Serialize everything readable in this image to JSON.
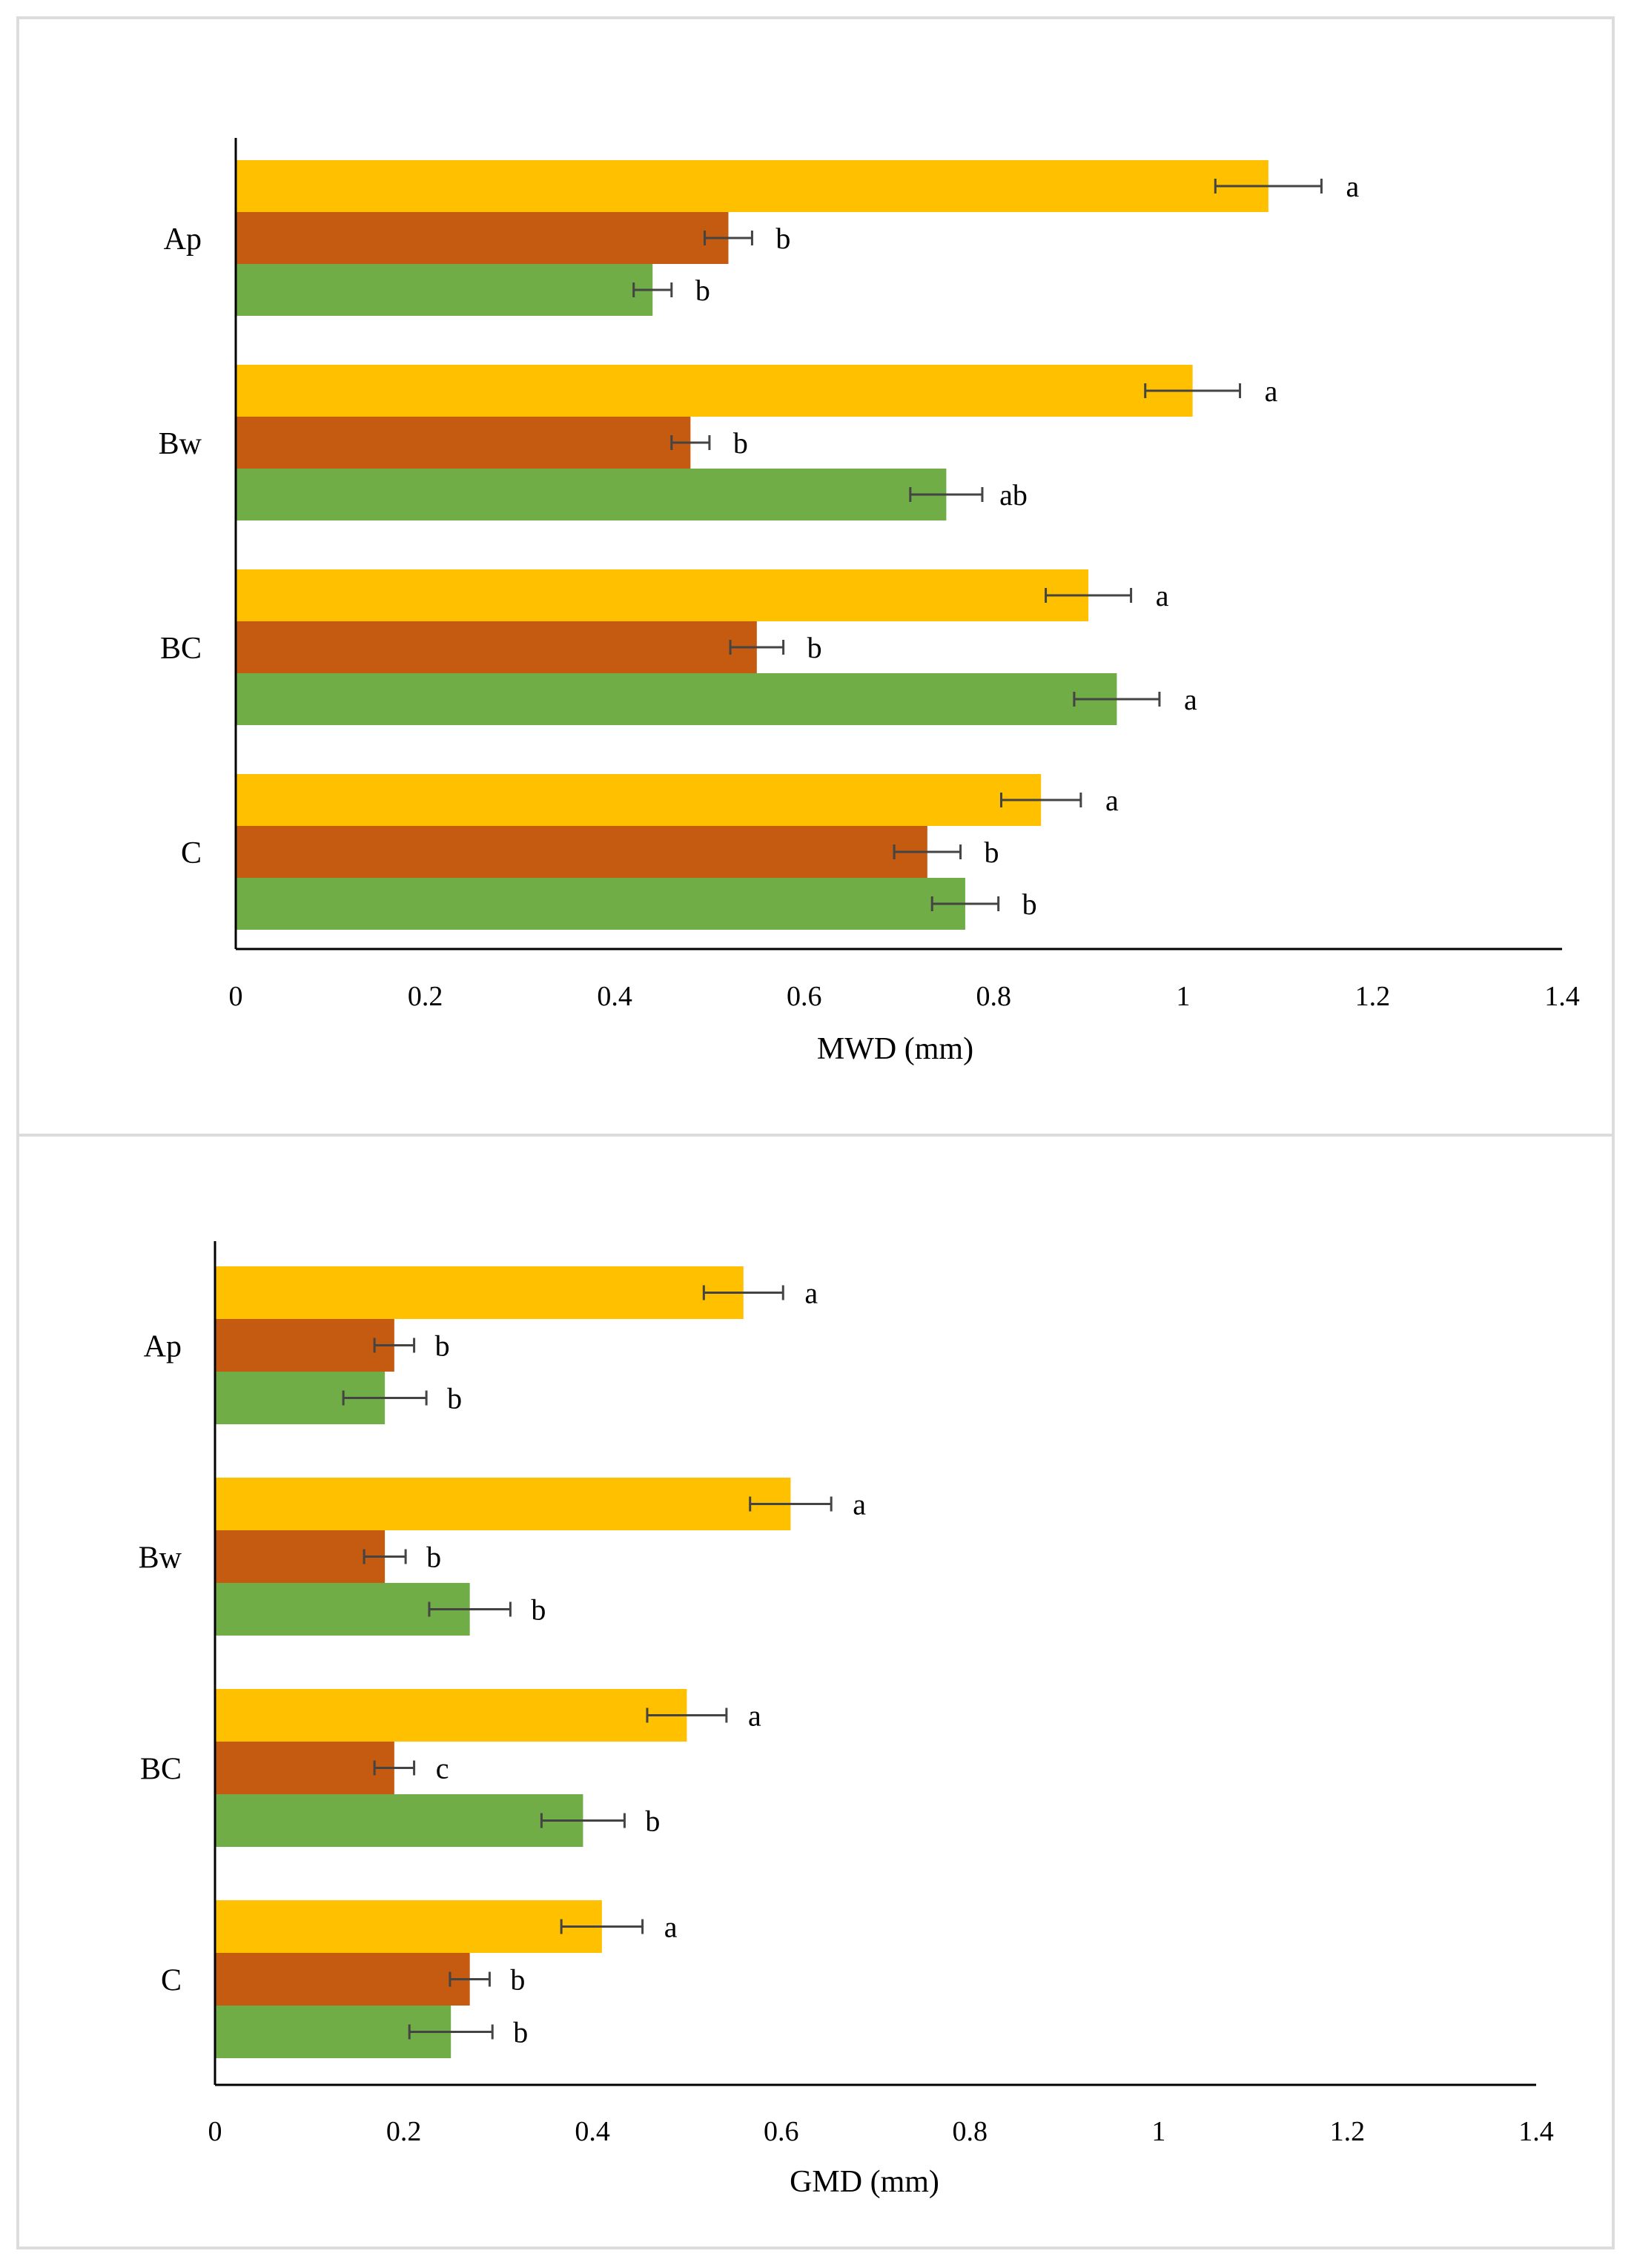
{
  "chart_data": [
    {
      "type": "bar",
      "orientation": "horizontal",
      "xlabel": "MWD (mm)",
      "xlim": [
        0,
        1.4
      ],
      "xticks": [
        "0",
        "0.2",
        "0.4",
        "0.6",
        "0.8",
        "1",
        "1.2",
        "1.4"
      ],
      "categories": [
        "Ap",
        "Bw",
        "BC",
        "C"
      ],
      "series": [
        {
          "name": "series-yellow",
          "color": "#FFC000",
          "values": [
            1.09,
            1.01,
            0.9,
            0.85
          ],
          "errors": [
            0.056,
            0.05,
            0.045,
            0.042
          ],
          "letters": [
            "a",
            "a",
            "a",
            "a"
          ]
        },
        {
          "name": "series-orange",
          "color": "#C55A11",
          "values": [
            0.52,
            0.48,
            0.55,
            0.73
          ],
          "errors": [
            0.025,
            0.02,
            0.028,
            0.035
          ],
          "letters": [
            "b",
            "b",
            "b",
            "b"
          ]
        },
        {
          "name": "series-green",
          "color": "#70AD47",
          "values": [
            0.44,
            0.75,
            0.93,
            0.77
          ],
          "errors": [
            0.02,
            0.038,
            0.045,
            0.035
          ],
          "letters": [
            "b",
            "ab",
            "a",
            "b"
          ]
        }
      ]
    },
    {
      "type": "bar",
      "orientation": "horizontal",
      "xlabel": "GMD (mm)",
      "xlim": [
        0,
        1.4
      ],
      "xticks": [
        "0",
        "0.2",
        "0.4",
        "0.6",
        "0.8",
        "1",
        "1.2",
        "1.4"
      ],
      "categories": [
        "Ap",
        "Bw",
        "BC",
        "C"
      ],
      "series": [
        {
          "name": "series-yellow",
          "color": "#FFC000",
          "values": [
            0.56,
            0.61,
            0.5,
            0.41
          ],
          "errors": [
            0.042,
            0.043,
            0.042,
            0.043
          ],
          "letters": [
            "a",
            "a",
            "a",
            "a"
          ]
        },
        {
          "name": "series-orange",
          "color": "#C55A11",
          "values": [
            0.19,
            0.18,
            0.19,
            0.27
          ],
          "errors": [
            0.021,
            0.022,
            0.021,
            0.021
          ],
          "letters": [
            "b",
            "b",
            "c",
            "b"
          ]
        },
        {
          "name": "series-green",
          "color": "#70AD47",
          "values": [
            0.18,
            0.27,
            0.39,
            0.25
          ],
          "errors": [
            0.044,
            0.043,
            0.044,
            0.044
          ],
          "letters": [
            "b",
            "b",
            "b",
            "b"
          ]
        }
      ]
    }
  ]
}
